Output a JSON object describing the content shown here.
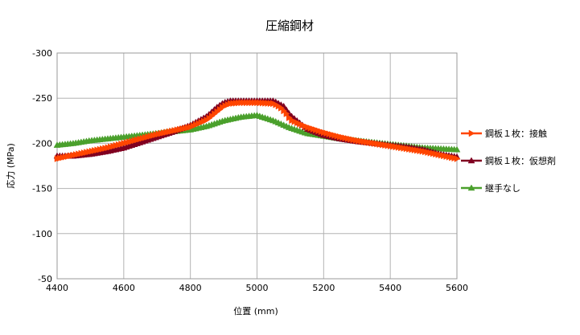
{
  "chart_data": {
    "type": "line",
    "title": "圧縮鋼材",
    "xlabel": "位置 (mm)",
    "ylabel": "応力 (MPa)",
    "xlim": [
      4400,
      5600
    ],
    "ylim": [
      -50,
      -300
    ],
    "x_ticks": [
      4400,
      4600,
      4800,
      5000,
      5200,
      5400,
      5600
    ],
    "x_tick_labels": [
      "4400",
      "4600",
      "4800",
      "5000",
      "5200",
      "5400",
      "5600"
    ],
    "y_ticks": [
      -300,
      -250,
      -200,
      -150,
      -100,
      -50
    ],
    "y_tick_labels": [
      "-300",
      "-250",
      "-200",
      "-150",
      "-100",
      "-50"
    ],
    "grid": true,
    "legend_position": "right",
    "series": [
      {
        "name": "鋼板１枚：接触",
        "color": "#ff4500",
        "marker": "triangle-right",
        "x": [
          4400,
          4450,
          4500,
          4550,
          4600,
          4650,
          4700,
          4750,
          4800,
          4850,
          4880,
          4900,
          4920,
          4950,
          5000,
          5050,
          5070,
          5090,
          5100,
          5150,
          5200,
          5250,
          5300,
          5350,
          5400,
          5450,
          5500,
          5550,
          5600
        ],
        "y": [
          -183,
          -187,
          -191,
          -195,
          -200,
          -205,
          -210,
          -214,
          -218,
          -226,
          -235,
          -241,
          -244,
          -245,
          -245,
          -244,
          -240,
          -232,
          -226,
          -218,
          -212,
          -207,
          -203,
          -200,
          -197,
          -194,
          -191,
          -187,
          -183
        ]
      },
      {
        "name": "鋼板１枚：仮想剤",
        "color": "#800020",
        "marker": "triangle-up",
        "x": [
          4400,
          4450,
          4500,
          4550,
          4600,
          4650,
          4700,
          4750,
          4800,
          4850,
          4880,
          4900,
          4920,
          4950,
          5000,
          5050,
          5080,
          5100,
          5150,
          5200,
          5250,
          5300,
          5350,
          5400,
          5450,
          5500,
          5550,
          5600
        ],
        "y": [
          -186,
          -186,
          -188,
          -191,
          -195,
          -201,
          -207,
          -213,
          -220,
          -230,
          -240,
          -245,
          -247,
          -247,
          -247,
          -247,
          -241,
          -231,
          -216,
          -209,
          -205,
          -202,
          -200,
          -198,
          -196,
          -193,
          -188,
          -185
        ]
      },
      {
        "name": "継手なし",
        "color": "#4aa02c",
        "marker": "triangle-up",
        "x": [
          4400,
          4450,
          4500,
          4550,
          4600,
          4650,
          4700,
          4750,
          4800,
          4850,
          4900,
          4950,
          5000,
          5050,
          5100,
          5150,
          5200,
          5250,
          5300,
          5350,
          5400,
          5450,
          5500,
          5550,
          5600
        ],
        "y": [
          -198,
          -200,
          -203,
          -205,
          -207,
          -209,
          -211,
          -213,
          -215,
          -219,
          -225,
          -229,
          -231,
          -225,
          -217,
          -211,
          -208,
          -205,
          -203,
          -201,
          -199,
          -197,
          -195,
          -194,
          -193
        ]
      }
    ]
  }
}
